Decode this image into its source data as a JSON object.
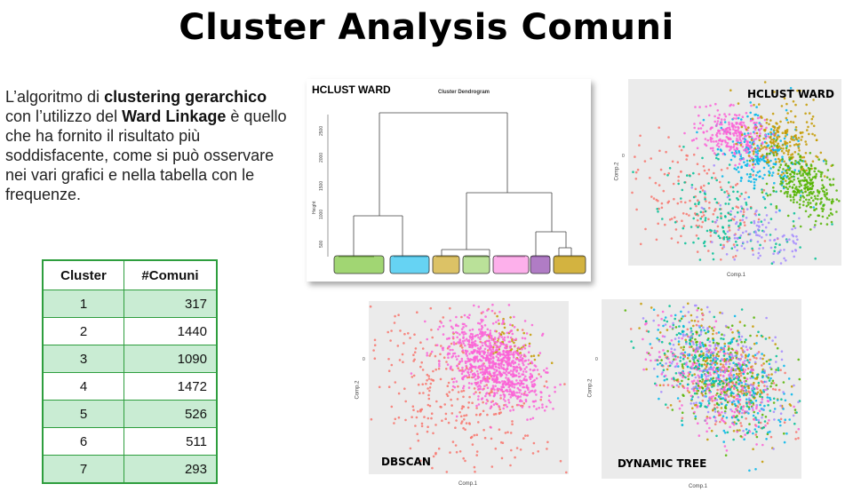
{
  "title": "Cluster Analysis Comuni",
  "intro": {
    "p1": "L’algoritmo di ",
    "b1": "clustering gerarchico",
    "p2": " con l’utilizzo del ",
    "b2": "Ward Linkage",
    "p3": " è quello che ha fornito il risultato più soddisfacente, come si può osservare nei vari grafici e nella tabella con le frequenze."
  },
  "table": {
    "headers": [
      "Cluster",
      "#Comuni"
    ],
    "rows": [
      {
        "cluster": "1",
        "comuni": "317"
      },
      {
        "cluster": "2",
        "comuni": "1440"
      },
      {
        "cluster": "3",
        "comuni": "1090"
      },
      {
        "cluster": "4",
        "comuni": "1472"
      },
      {
        "cluster": "5",
        "comuni": "526"
      },
      {
        "cluster": "6",
        "comuni": "511"
      },
      {
        "cluster": "7",
        "comuni": "293"
      }
    ]
  },
  "dendrogram": {
    "label": "HCLUST WARD",
    "title": "Cluster Dendrogram",
    "ylabel": "Height",
    "yticks": [
      "2500",
      "2000",
      "1500",
      "1000",
      "500"
    ]
  },
  "scatter": {
    "hclust_label": "HCLUST WARD",
    "dbscan_label": "DBSCAN",
    "dynamic_label": "DYNAMIC TREE",
    "xlabel": "Comp.1",
    "ylabel": "Comp.2",
    "zero": "0"
  },
  "colors": {
    "accent_green": "#2e9e3e",
    "row_green": "#c9ecd3",
    "clusters": [
      "#F8766D",
      "#C49A00",
      "#53B400",
      "#00C094",
      "#00B6EB",
      "#A58AFF",
      "#FB61D7"
    ]
  }
}
